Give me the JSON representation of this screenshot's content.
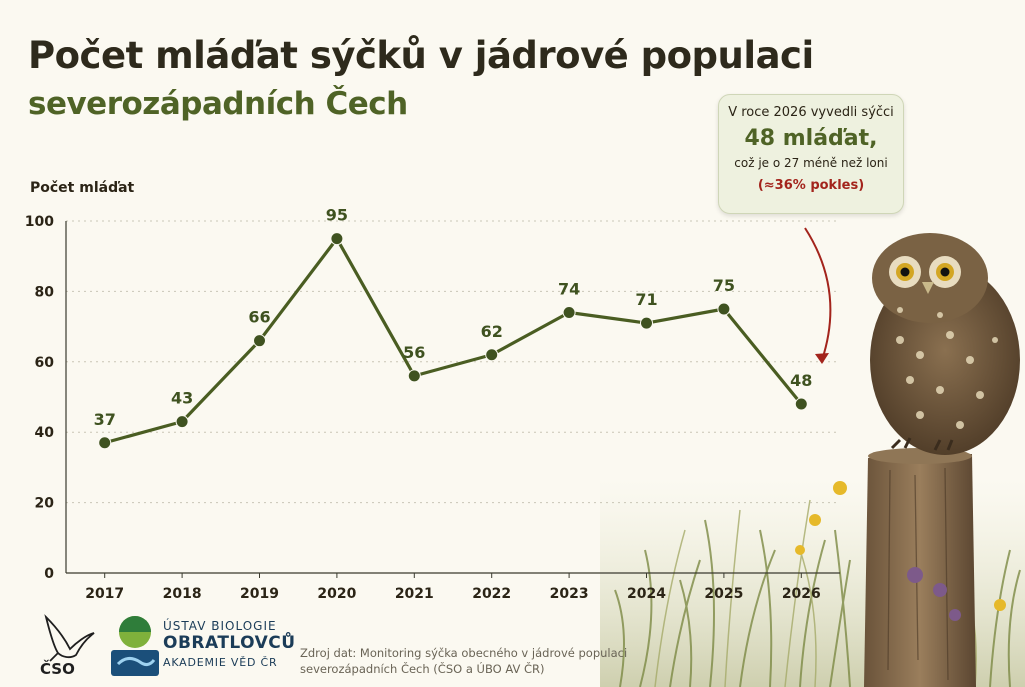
{
  "title": "Počet mláďat sýčků v jádrové populaci",
  "subtitle": "severozápadních Čech",
  "callout": {
    "line1": "V roce 2026 vyvedli sýčci",
    "line2": "48 mláďat,",
    "line3": "což je o 27 méně než loni",
    "line4": "(≈36% pokles)"
  },
  "source": {
    "line1": "Zdroj dat: Monitoring sýčka obecného v jádrové populaci",
    "line2": "severozápadních Čech (ČSO a ÚBO AV ČR)"
  },
  "logos": {
    "cso": "ČSO",
    "ubo_line1": "ÚSTAV BIOLOGIE",
    "ubo_line2": "OBRATLOVCŮ",
    "ubo_line3": "AKADEMIE VĚD ČR"
  },
  "colors": {
    "line": "#4a5d22",
    "point": "#3f5220",
    "label": "#3f5220",
    "highlight": "#a3241c"
  },
  "chart_data": {
    "type": "line",
    "title": "Počet mláďat sýčků v jádrové populaci severozápadních Čech",
    "xlabel": "",
    "ylabel": "Počet mláďat",
    "categories": [
      "2017",
      "2018",
      "2019",
      "2020",
      "2021",
      "2022",
      "2023",
      "2024",
      "2025",
      "2026"
    ],
    "series": [
      {
        "values": [
          37,
          43,
          66,
          95,
          56,
          62,
          74,
          71,
          75,
          48
        ]
      }
    ],
    "ylim": [
      0,
      100
    ],
    "yticks": [
      0,
      20,
      40,
      60,
      80,
      100
    ],
    "grid": "horizontal dotted",
    "data_labels": true
  }
}
